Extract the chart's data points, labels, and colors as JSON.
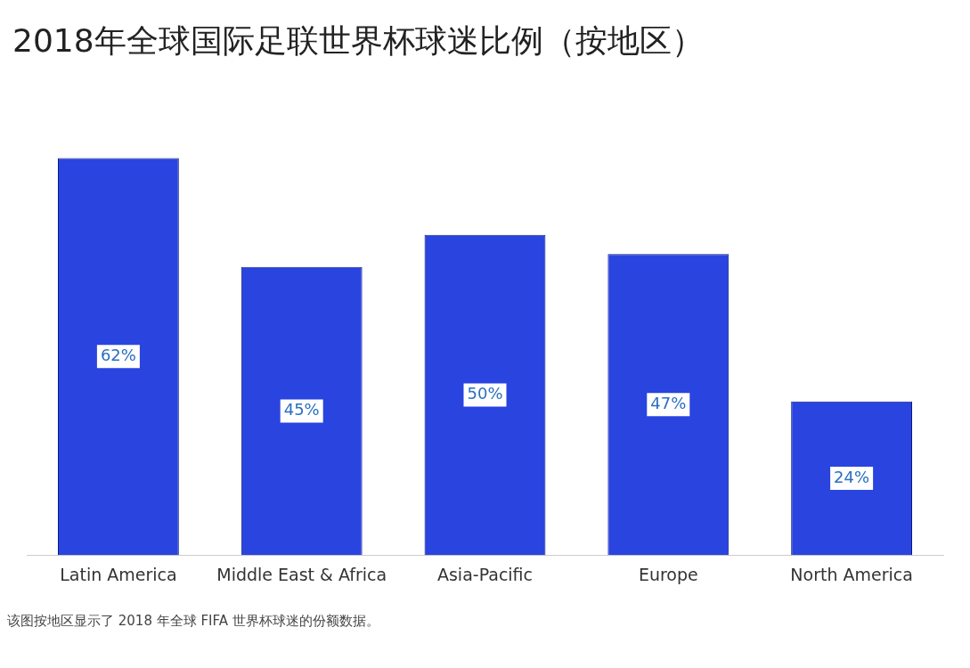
{
  "chart_data": {
    "type": "bar",
    "title": "2018年全球国际足联世界杯球迷比例（按地区）",
    "categories": [
      "Latin America",
      "Middle East & Africa",
      "Asia-Pacific",
      "Europe",
      "North America"
    ],
    "values": [
      62,
      45,
      50,
      47,
      24
    ],
    "color": "#2a44e0",
    "value_labels": [
      "62%",
      "45%",
      "50%",
      "47%",
      "24%"
    ],
    "grid": false,
    "legend": false,
    "annotations": [
      "该图按地区显示了 2018 年全球 FIFA 世界杯球迷的份额数据。"
    ]
  }
}
